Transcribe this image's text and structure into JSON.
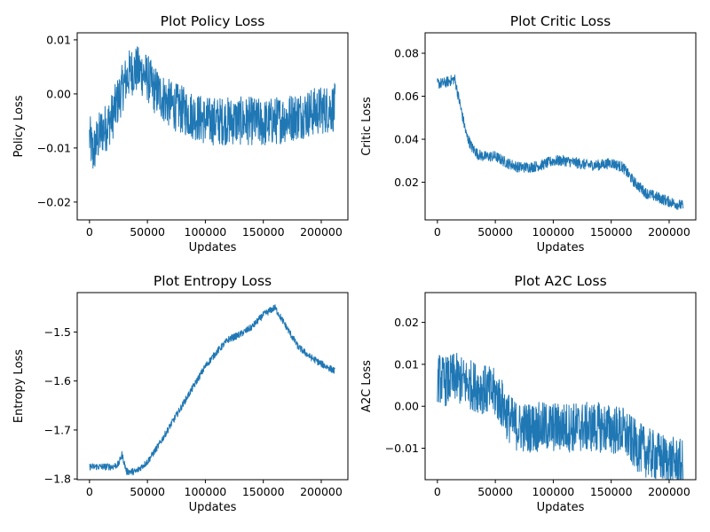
{
  "chart_data": [
    {
      "type": "line",
      "title": "Plot Policy Loss",
      "xlabel": "Updates",
      "ylabel": "Policy Loss",
      "xlim": [
        -10600,
        223000
      ],
      "ylim": [
        -0.0233,
        0.0113
      ],
      "xticks": [
        0,
        50000,
        100000,
        150000,
        200000
      ],
      "yticks": [
        -0.02,
        -0.01,
        0.0,
        0.01
      ],
      "ytick_labels": [
        "−0.02",
        "−0.01",
        "0.00",
        "0.01"
      ],
      "grid": false,
      "series": [
        {
          "color": "#1f77b4",
          "noise": 0.0045,
          "x": [
            0,
            3000,
            6000,
            10000,
            15000,
            20000,
            25000,
            30000,
            35000,
            40000,
            45000,
            50000,
            55000,
            60000,
            70000,
            80000,
            90000,
            100000,
            110000,
            120000,
            130000,
            140000,
            150000,
            160000,
            170000,
            180000,
            190000,
            200000,
            212000
          ],
          "y": [
            -0.008,
            -0.011,
            -0.009,
            -0.007,
            -0.006,
            -0.004,
            -0.001,
            0.002,
            0.004,
            0.0045,
            0.004,
            0.003,
            0.001,
            0.0,
            -0.002,
            -0.003,
            -0.004,
            -0.005,
            -0.005,
            -0.005,
            -0.005,
            -0.005,
            -0.0055,
            -0.005,
            -0.0045,
            -0.004,
            -0.0035,
            -0.003,
            -0.0025
          ]
        }
      ]
    },
    {
      "type": "line",
      "title": "Plot Critic Loss",
      "xlabel": "Updates",
      "ylabel": "Critic Loss",
      "xlim": [
        -10600,
        223000
      ],
      "ylim": [
        0.0025,
        0.0895
      ],
      "xticks": [
        0,
        50000,
        100000,
        150000,
        200000
      ],
      "yticks": [
        0.02,
        0.04,
        0.06,
        0.08
      ],
      "ytick_labels": [
        "0.02",
        "0.04",
        "0.06",
        "0.08"
      ],
      "grid": false,
      "series": [
        {
          "color": "#1f77b4",
          "noise": 0.0025,
          "x": [
            0,
            5000,
            10000,
            15000,
            20000,
            25000,
            30000,
            35000,
            40000,
            50000,
            60000,
            70000,
            80000,
            90000,
            100000,
            110000,
            120000,
            130000,
            140000,
            150000,
            160000,
            170000,
            180000,
            190000,
            200000,
            212000
          ],
          "y": [
            0.066,
            0.066,
            0.067,
            0.068,
            0.055,
            0.042,
            0.036,
            0.033,
            0.032,
            0.032,
            0.029,
            0.027,
            0.027,
            0.028,
            0.03,
            0.03,
            0.029,
            0.028,
            0.028,
            0.029,
            0.027,
            0.02,
            0.015,
            0.013,
            0.011,
            0.009
          ]
        }
      ]
    },
    {
      "type": "line",
      "title": "Plot Entropy Loss",
      "xlabel": "Updates",
      "ylabel": "Entropy Loss",
      "xlim": [
        -10600,
        223000
      ],
      "ylim": [
        -1.8015,
        -1.4195
      ],
      "xticks": [
        0,
        50000,
        100000,
        150000,
        200000
      ],
      "yticks": [
        -1.8,
        -1.7,
        -1.6,
        -1.5
      ],
      "ytick_labels": [
        "−1.8",
        "−1.7",
        "−1.6",
        "−1.5"
      ],
      "grid": false,
      "series": [
        {
          "color": "#1f77b4",
          "noise": 0.007,
          "x": [
            0,
            10000,
            20000,
            25000,
            28000,
            32000,
            40000,
            50000,
            60000,
            70000,
            80000,
            90000,
            100000,
            110000,
            120000,
            130000,
            140000,
            150000,
            160000,
            170000,
            180000,
            190000,
            200000,
            212000
          ],
          "y": [
            -1.775,
            -1.775,
            -1.775,
            -1.77,
            -1.75,
            -1.785,
            -1.785,
            -1.765,
            -1.73,
            -1.69,
            -1.65,
            -1.61,
            -1.57,
            -1.54,
            -1.515,
            -1.505,
            -1.49,
            -1.465,
            -1.45,
            -1.49,
            -1.53,
            -1.55,
            -1.565,
            -1.58
          ]
        }
      ]
    },
    {
      "type": "line",
      "title": "Plot A2C Loss",
      "xlabel": "Updates",
      "ylabel": "A2C Loss",
      "xlim": [
        -10600,
        223000
      ],
      "ylim": [
        -0.0175,
        0.0271
      ],
      "xticks": [
        0,
        50000,
        100000,
        150000,
        200000
      ],
      "yticks": [
        -0.01,
        0.0,
        0.01,
        0.02
      ],
      "ytick_labels": [
        "−0.01",
        "0.00",
        "0.01",
        "0.02"
      ],
      "grid": false,
      "series": [
        {
          "color": "#1f77b4",
          "noise": 0.006,
          "x": [
            0,
            5000,
            10000,
            15000,
            20000,
            30000,
            40000,
            50000,
            55000,
            60000,
            65000,
            70000,
            80000,
            90000,
            100000,
            120000,
            140000,
            160000,
            170000,
            180000,
            190000,
            200000,
            212000
          ],
          "y": [
            0.007,
            0.006,
            0.006,
            0.007,
            0.006,
            0.005,
            0.004,
            0.003,
            0.001,
            -0.002,
            -0.004,
            -0.005,
            -0.005,
            -0.005,
            -0.005,
            -0.005,
            -0.005,
            -0.006,
            -0.009,
            -0.011,
            -0.012,
            -0.013,
            -0.014
          ]
        }
      ]
    }
  ]
}
